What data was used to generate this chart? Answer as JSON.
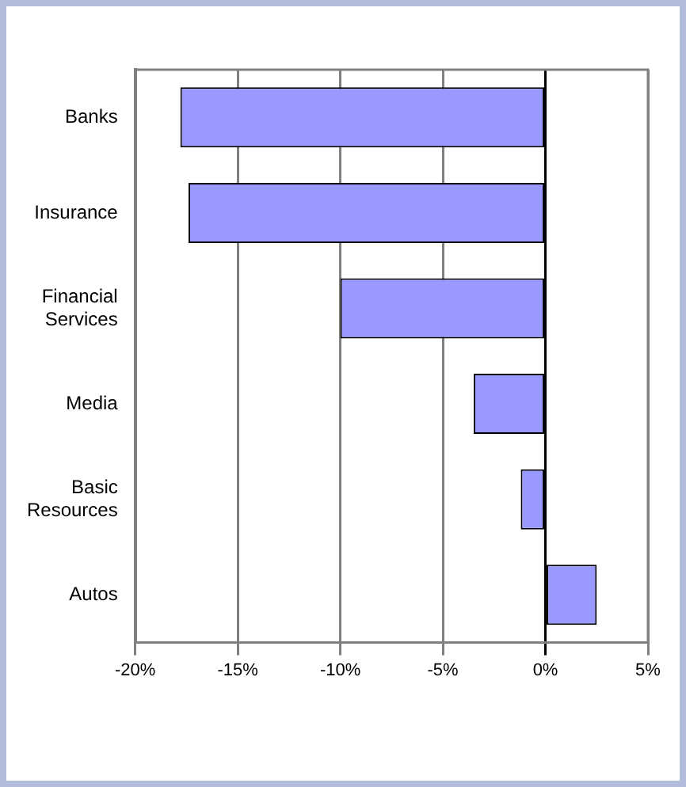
{
  "chart_data": {
    "type": "bar",
    "orientation": "horizontal",
    "categories": [
      "Banks",
      "Insurance",
      "Financial Services",
      "Media",
      "Basic Resources",
      "Autos"
    ],
    "values": [
      -17.8,
      -17.4,
      -10.0,
      -3.5,
      -1.2,
      2.5
    ],
    "color": "#9999ff",
    "xlim": [
      -20,
      5
    ],
    "xticks": [
      {
        "value": -20,
        "label": "-20%"
      },
      {
        "value": -15,
        "label": "-15%"
      },
      {
        "value": -10,
        "label": "-10%"
      },
      {
        "value": -5,
        "label": "-5%"
      },
      {
        "value": 0,
        "label": "0%"
      },
      {
        "value": 5,
        "label": "5%"
      }
    ],
    "grid": "x",
    "legend": false
  }
}
